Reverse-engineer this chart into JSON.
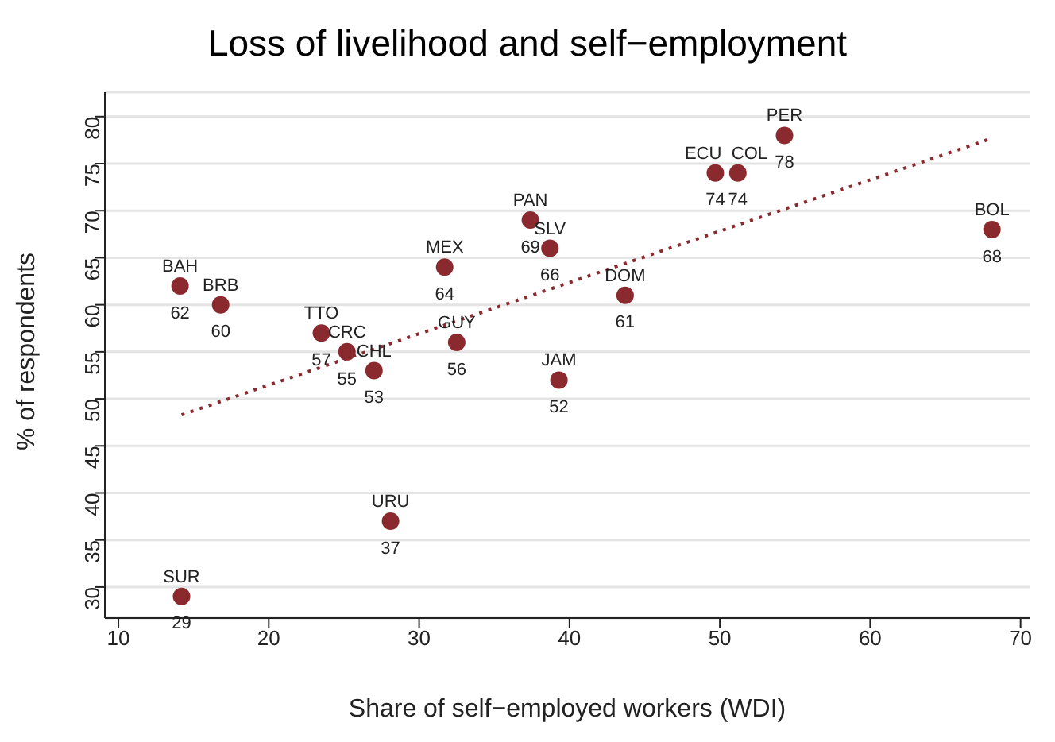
{
  "chart_data": {
    "type": "scatter",
    "title": "Loss of livelihood and self−employment",
    "xlabel": "Share of self−employed workers (WDI)",
    "ylabel": "% of respondents",
    "xlim": [
      9.1,
      70.6
    ],
    "xticks": [
      10,
      20,
      30,
      40,
      50,
      60,
      70
    ],
    "ylim": [
      26.7,
      82.6
    ],
    "yticks": [
      30,
      35,
      40,
      45,
      50,
      55,
      60,
      65,
      70,
      75,
      80
    ],
    "grid": "y",
    "series": [
      {
        "color": "#8b2a2e",
        "marker": "circle",
        "x": [
          14.1,
          16.8,
          23.5,
          25.2,
          27.0,
          31.7,
          32.5,
          39.3,
          37.4,
          38.7,
          43.7,
          49.7,
          51.2,
          54.3,
          68.1,
          28.1,
          14.2
        ],
        "values": [
          62,
          60,
          57,
          55,
          53,
          64,
          56,
          52,
          69,
          66,
          61,
          74,
          74,
          78,
          68,
          37,
          29
        ],
        "value_labels": [
          "62",
          "60",
          "57",
          "55",
          "53",
          "64",
          "56",
          "52",
          "69",
          "66",
          "61",
          "74",
          "74",
          "78",
          "68",
          "37",
          "29"
        ]
      },
      {
        "type": "line",
        "color": "#8b2a2e",
        "marker": "none",
        "line_style": "dotted",
        "x": [
          14.2,
          68.1
        ],
        "values": [
          48.3,
          77.7
        ]
      }
    ],
    "annotations": [
      {
        "text": "BAH",
        "x": 14.1,
        "y": 62
      },
      {
        "text": "BRB",
        "x": 16.8,
        "y": 60
      },
      {
        "text": "TTO",
        "x": 23.5,
        "y": 57
      },
      {
        "text": "CRC",
        "x": 25.2,
        "y": 55
      },
      {
        "text": "CHL",
        "x": 27.0,
        "y": 53
      },
      {
        "text": "MEX",
        "x": 31.7,
        "y": 64
      },
      {
        "text": "GUY",
        "x": 32.5,
        "y": 56
      },
      {
        "text": "JAM",
        "x": 39.3,
        "y": 52
      },
      {
        "text": "PAN",
        "x": 37.4,
        "y": 69
      },
      {
        "text": "SLV",
        "x": 38.7,
        "y": 66
      },
      {
        "text": "DOM",
        "x": 43.7,
        "y": 61
      },
      {
        "text": "ECU",
        "x": 49.7,
        "y": 74
      },
      {
        "text": "COL",
        "x": 51.2,
        "y": 74
      },
      {
        "text": "PER",
        "x": 54.3,
        "y": 78
      },
      {
        "text": "BOL",
        "x": 68.1,
        "y": 68
      },
      {
        "text": "URU",
        "x": 28.1,
        "y": 37
      },
      {
        "text": "SUR",
        "x": 14.2,
        "y": 29
      }
    ]
  }
}
